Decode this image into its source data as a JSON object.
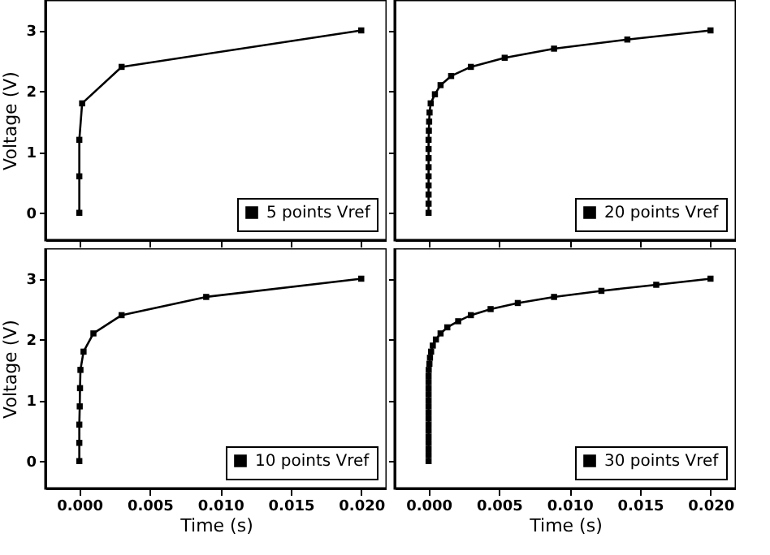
{
  "chart_data": [
    {
      "type": "line",
      "ylabel": "Voltage (V)",
      "xlim": [
        -0.0024,
        0.0218
      ],
      "ylim": [
        -0.45,
        3.5
      ],
      "xticks": [
        0,
        0.005,
        0.01,
        0.015,
        0.02
      ],
      "yticks": [
        0,
        1,
        2,
        3
      ],
      "tick_labels": "y",
      "legend": "bottom right",
      "marker": "square",
      "line_style": "solid",
      "series": [
        {
          "name": "5 points Vref",
          "color": "#000000",
          "x": [
            0,
            0,
            0,
            0.0002,
            0.003,
            0.02
          ],
          "values": [
            0,
            0.6,
            1.2,
            1.8,
            2.4,
            3.0
          ]
        }
      ]
    },
    {
      "type": "line",
      "xlim": [
        -0.0024,
        0.0218
      ],
      "ylim": [
        -0.45,
        3.5
      ],
      "xticks": [
        0,
        0.005,
        0.01,
        0.015,
        0.02
      ],
      "yticks": [
        0,
        1,
        2,
        3
      ],
      "tick_labels": false,
      "legend": "bottom right",
      "marker": "square",
      "line_style": "solid",
      "series": [
        {
          "name": "20 points Vref",
          "color": "#000000",
          "x": [
            0,
            0,
            0,
            0,
            0,
            0,
            0,
            0,
            0,
            2e-05,
            4e-05,
            7e-05,
            0.00015,
            0.00045,
            0.00085,
            0.0016,
            0.003,
            0.0054,
            0.0089,
            0.0141,
            0.02
          ],
          "values": [
            0,
            0.15,
            0.3,
            0.45,
            0.6,
            0.75,
            0.9,
            1.05,
            1.2,
            1.35,
            1.5,
            1.65,
            1.8,
            1.95,
            2.1,
            2.25,
            2.4,
            2.55,
            2.7,
            2.85,
            3.0
          ]
        }
      ]
    },
    {
      "type": "line",
      "xlabel": "Time (s)",
      "ylabel": "Voltage (V)",
      "xlim": [
        -0.0024,
        0.0218
      ],
      "ylim": [
        -0.45,
        3.5
      ],
      "xticks": [
        {
          "value": 0,
          "label": "0.000"
        },
        {
          "value": 0.005,
          "label": "0.005"
        },
        {
          "value": 0.01,
          "label": "0.010"
        },
        {
          "value": 0.015,
          "label": "0.015"
        },
        {
          "value": 0.02,
          "label": "0.020"
        }
      ],
      "yticks": [
        0,
        1,
        2,
        3
      ],
      "legend": "bottom right",
      "marker": "square",
      "line_style": "solid",
      "series": [
        {
          "name": "10 points Vref",
          "color": "#000000",
          "x": [
            0,
            0,
            0,
            3e-05,
            5e-05,
            8e-05,
            0.0003,
            0.001,
            0.003,
            0.009,
            0.02
          ],
          "values": [
            0,
            0.3,
            0.6,
            0.9,
            1.2,
            1.5,
            1.8,
            2.1,
            2.4,
            2.7,
            3.0
          ]
        }
      ]
    },
    {
      "type": "line",
      "xlabel": "Time (s)",
      "xlim": [
        -0.0024,
        0.0218
      ],
      "ylim": [
        -0.45,
        3.5
      ],
      "xticks": [
        {
          "value": 0,
          "label": "0.000"
        },
        {
          "value": 0.005,
          "label": "0.005"
        },
        {
          "value": 0.01,
          "label": "0.010"
        },
        {
          "value": 0.015,
          "label": "0.015"
        },
        {
          "value": 0.02,
          "label": "0.020"
        }
      ],
      "yticks": [
        0,
        1,
        2,
        3
      ],
      "tick_labels": "x",
      "legend": "bottom right",
      "marker": "square",
      "line_style": "solid",
      "series": [
        {
          "name": "30 points Vref",
          "color": "#000000",
          "x": [
            0,
            0,
            0,
            0,
            0,
            0,
            0,
            0,
            0,
            0,
            0,
            0,
            0,
            0,
            0,
            1e-05,
            6e-05,
            0.0001,
            0.00018,
            0.0003,
            0.00052,
            0.00085,
            0.00133,
            0.0021,
            0.003,
            0.0044,
            0.00633,
            0.0089,
            0.01226,
            0.01615,
            0.02
          ],
          "values": [
            0,
            0.1,
            0.2,
            0.3,
            0.4,
            0.5,
            0.6,
            0.7,
            0.8,
            0.9,
            1.0,
            1.1,
            1.2,
            1.3,
            1.4,
            1.5,
            1.6,
            1.7,
            1.8,
            1.9,
            2.0,
            2.1,
            2.2,
            2.3,
            2.4,
            2.5,
            2.6,
            2.7,
            2.8,
            2.9,
            3.0
          ]
        }
      ]
    }
  ]
}
